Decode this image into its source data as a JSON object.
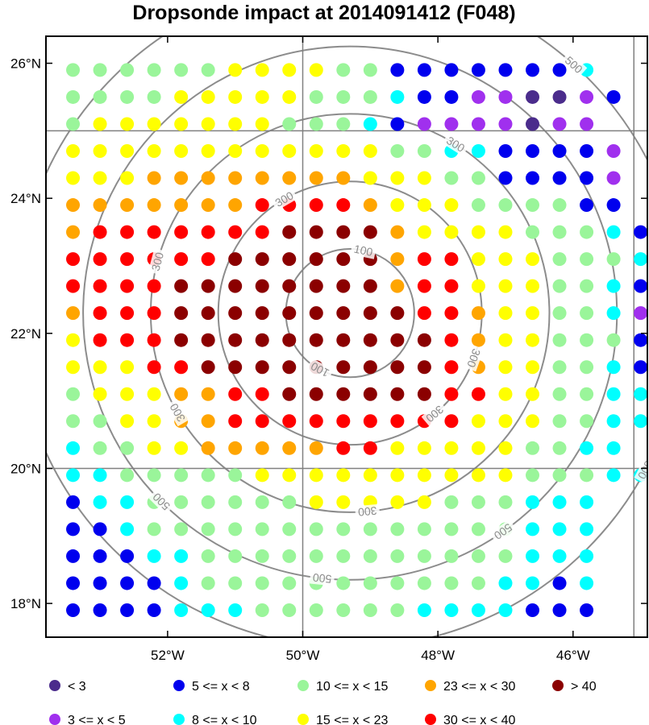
{
  "chart_data": {
    "type": "scatter",
    "title": "Dropsonde impact at 2014091412 (F048)",
    "x_ticks": [
      "52°W",
      "50°W",
      "48°W",
      "46°W"
    ],
    "x_tick_values": [
      -52,
      -50,
      -48,
      -46
    ],
    "y_ticks": [
      "26°N",
      "24°N",
      "22°N",
      "20°N",
      "18°N"
    ],
    "y_tick_values": [
      26,
      24,
      22,
      20,
      18
    ],
    "xlim": [
      -53.8,
      -44.9
    ],
    "ylim": [
      17.5,
      26.4
    ],
    "grid_lines": {
      "lon": [
        -50,
        -45.1
      ],
      "lat": [
        25,
        20
      ]
    },
    "contours": {
      "center": [
        -49.3,
        22.3
      ],
      "levels": [
        100,
        300,
        500
      ],
      "labels": [
        "100",
        "100",
        "300",
        "300",
        "300",
        "300",
        "300",
        "300",
        "300",
        "500",
        "500",
        "500",
        "500",
        "500",
        "500",
        "500"
      ]
    },
    "legend": [
      {
        "label": "<  3",
        "color": "#4b2c8c"
      },
      {
        "label": "5 <= x <  8",
        "color": "#0000ee"
      },
      {
        "label": "10 <= x < 15",
        "color": "#9af59a"
      },
      {
        "label": "23 <= x < 30",
        "color": "#ffa500"
      },
      {
        "label": "> 40",
        "color": "#8b0000"
      },
      {
        "label": "3 <= x <  5",
        "color": "#a030ee"
      },
      {
        "label": "8 <= x < 10",
        "color": "#00ffff"
      },
      {
        "label": "15 <= x < 23",
        "color": "#ffff00"
      },
      {
        "label": "30 <= x < 40",
        "color": "#ff0000"
      }
    ],
    "grid": {
      "lon_start": -53.4,
      "lon_step": 0.4,
      "lat_values": [
        25.9,
        25.5,
        25.1,
        24.7,
        24.3,
        23.9,
        23.5,
        23.1,
        22.7,
        22.3,
        21.9,
        21.5,
        21.1,
        20.7,
        20.3,
        19.9,
        19.5,
        19.1,
        18.7,
        18.3,
        17.9
      ],
      "class_key": {
        "v": "< 3",
        "p": "3 <= x < 5",
        "b": "5 <= x < 8",
        "c": "8 <= x < 10",
        "g": "10 <= x < 15",
        "y": "15 <= x < 23",
        "o": "23 <= x < 30",
        "r": "30 <= x < 40",
        "d": "> 40"
      },
      "rows": [
        "ggggggyyyyggbbbbbbbc",
        "ggggyyyyygggcbbppvvpb",
        "gyyyyyyygggcbppppvpp",
        "yyyyyyyyyyyyggccbbbbp",
        "yyyooooooooyyyggbbbbp",
        "ooooooorrrroyyyggggbb",
        "orrrrrrrddddoyyyygggcb",
        "rrrrrrddddddorryyygggcb",
        "rrrrddddddddorryyyggcb",
        "orrrdddddddddrroyyggcp",
        "yrrrddddddddddroyygggb",
        "yyyrrdddddddddroyyggcb",
        "gyyyoorrddddddrryyggcc",
        "ggyyoorrrrrrrrryyyggcc",
        "cggyyooooorryyyyyggcc",
        "ccgggggyyyyyyyyyygggcc",
        "bccggggggyyyyygggccc",
        "bbcggggggggggggggccc",
        "bbbccggggggggggggccc",
        "bbbbcgggggggggggccbc",
        "bbbbcccggggggccccbbb"
      ]
    }
  }
}
